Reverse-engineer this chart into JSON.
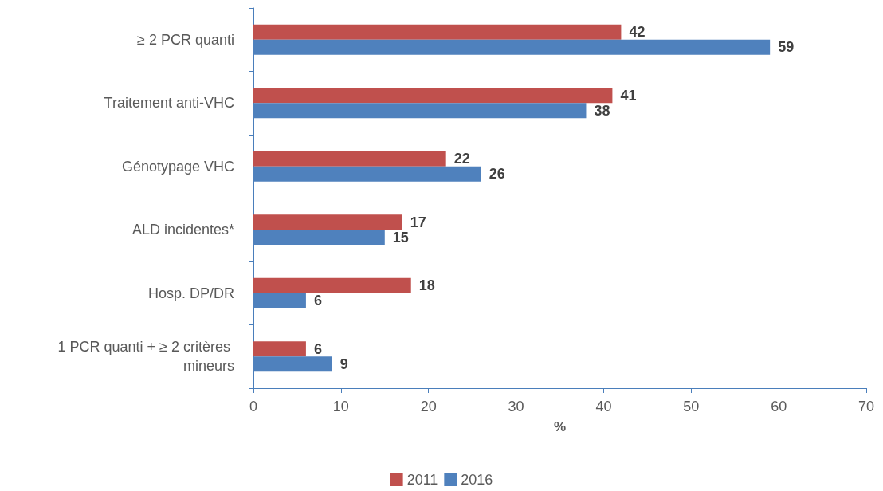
{
  "chart_data": {
    "type": "bar",
    "orientation": "horizontal",
    "xlabel": "%",
    "categories": [
      "≥ 2 PCR quanti",
      "Traitement anti-VHC",
      "Génotypage VHC",
      "ALD incidentes*",
      "Hosp. DP/DR",
      "1 PCR quanti + ≥ 2 critères mineurs"
    ],
    "series": [
      {
        "name": "2011",
        "color": "#c0504d",
        "values": [
          42,
          41,
          22,
          17,
          18,
          6
        ]
      },
      {
        "name": "2016",
        "color": "#4f81bd",
        "values": [
          59,
          38,
          26,
          15,
          6,
          9
        ]
      }
    ],
    "xlim": [
      0,
      70
    ],
    "xticks": [
      0,
      10,
      20,
      30,
      40,
      50,
      60,
      70
    ],
    "grid": false,
    "legend": "bottom",
    "data_labels": true
  }
}
